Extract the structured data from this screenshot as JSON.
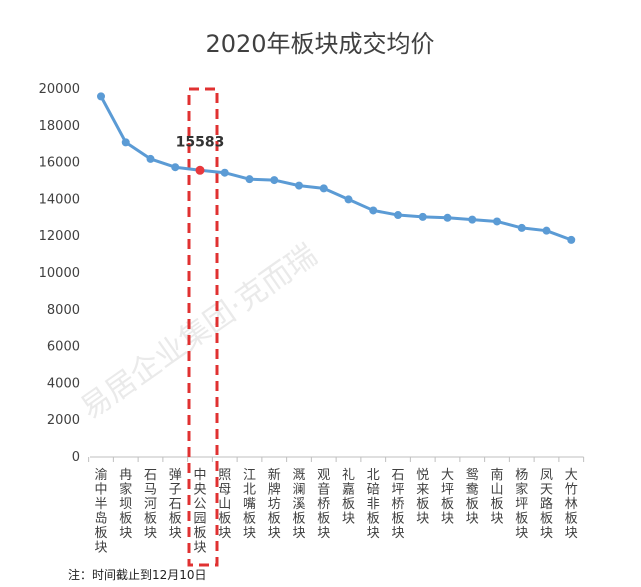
{
  "chart_data": {
    "type": "line",
    "title": "2020年板块成交均价",
    "xlabel": "",
    "ylabel": "",
    "ylim": [
      0,
      20000
    ],
    "yticks": [
      0,
      2000,
      4000,
      6000,
      8000,
      10000,
      12000,
      14000,
      16000,
      18000,
      20000
    ],
    "grid": false,
    "categories": [
      "渝中半岛板块",
      "冉家坝板块",
      "石马河板块",
      "弹子石板块",
      "中央公园板块",
      "照母山板块",
      "江北嘴板块",
      "新牌坊板块",
      "溉澜溪板块",
      "观音桥板块",
      "礼嘉板块",
      "北碚非板块",
      "石坪桥板块",
      "悦来板块",
      "大坪板块",
      "鸳鸯板块",
      "南山板块",
      "杨家坪板块",
      "凤天路板块",
      "大竹林板块"
    ],
    "series": [
      {
        "values": [
          19600,
          17100,
          16200,
          15750,
          15583,
          15450,
          15100,
          15050,
          14750,
          14600,
          14000,
          13400,
          13150,
          13050,
          13000,
          12900,
          12800,
          12450,
          12300,
          11800
        ]
      }
    ],
    "highlight": {
      "index": 4,
      "label": "15583"
    },
    "colors": {
      "line": "#5b9bd5",
      "highlight_point": "#e8383d",
      "highlight_box": "#e03131"
    }
  },
  "watermark": "易居企业集团·克而瑞",
  "note": "注：时间截止到12月10日"
}
